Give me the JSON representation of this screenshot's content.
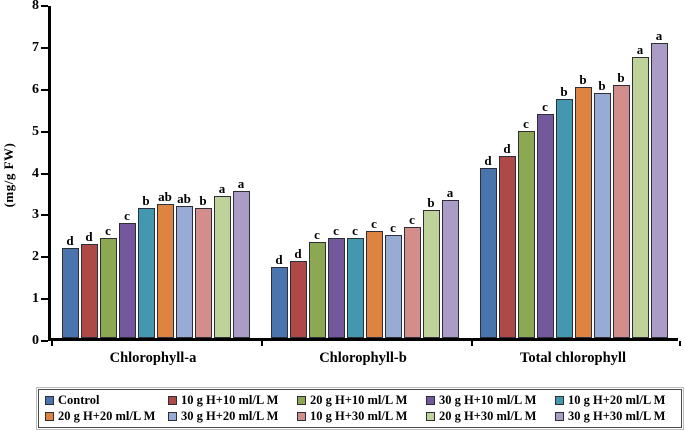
{
  "chart_data": {
    "type": "bar",
    "title": "",
    "xlabel": "",
    "ylabel": "(mg/g FW)",
    "ylim": [
      0,
      8
    ],
    "yticks": [
      0,
      1,
      2,
      3,
      4,
      5,
      6,
      7,
      8
    ],
    "grid": false,
    "legend_position": "bottom-box",
    "categories": [
      "Chlorophyll-a",
      "Chlorophyll-b",
      "Total chlorophyll"
    ],
    "series": [
      {
        "name": "Control",
        "color": "#4a74ad",
        "values": [
          2.15,
          1.7,
          4.05
        ],
        "letters": [
          "d",
          "d",
          "d"
        ]
      },
      {
        "name": "10 g H+10 ml/L M",
        "color": "#ad4a47",
        "values": [
          2.25,
          1.85,
          4.35
        ],
        "letters": [
          "d",
          "d",
          "d"
        ]
      },
      {
        "name": "20 g H+10 ml/L M",
        "color": "#8ca852",
        "values": [
          2.4,
          2.3,
          4.95
        ],
        "letters": [
          "c",
          "c",
          "c"
        ]
      },
      {
        "name": "30 g H+10 ml/L M",
        "color": "#73599b",
        "values": [
          2.75,
          2.4,
          5.35
        ],
        "letters": [
          "c",
          "c",
          "c"
        ]
      },
      {
        "name": "10 g H+20 ml/L M",
        "color": "#4397af",
        "values": [
          3.1,
          2.4,
          5.7
        ],
        "letters": [
          "b",
          "c",
          "b"
        ]
      },
      {
        "name": "20 g H+20 ml/L M",
        "color": "#dd8442",
        "values": [
          3.2,
          2.55,
          6.0
        ],
        "letters": [
          "ab",
          "c",
          "b"
        ]
      },
      {
        "name": "30 g H+20 ml/L M",
        "color": "#98abd5",
        "values": [
          3.15,
          2.45,
          5.85
        ],
        "letters": [
          "ab",
          "c",
          "b"
        ]
      },
      {
        "name": "10 g H+30 ml/L M",
        "color": "#d38e8b",
        "values": [
          3.1,
          2.65,
          6.05
        ],
        "letters": [
          "b",
          "c",
          "b"
        ]
      },
      {
        "name": "20 g H+30 ml/L M",
        "color": "#bfd29a",
        "values": [
          3.4,
          3.05,
          6.7
        ],
        "letters": [
          "a",
          "b",
          "a"
        ]
      },
      {
        "name": "30 g H+30 ml/L M",
        "color": "#ab9bc7",
        "values": [
          3.5,
          3.3,
          7.05
        ],
        "letters": [
          "a",
          "a",
          "a"
        ]
      }
    ],
    "colors": {
      "bar_border": "#2e2e38",
      "axis": "#000000",
      "text": "#000000",
      "background": "#ffffff"
    }
  }
}
